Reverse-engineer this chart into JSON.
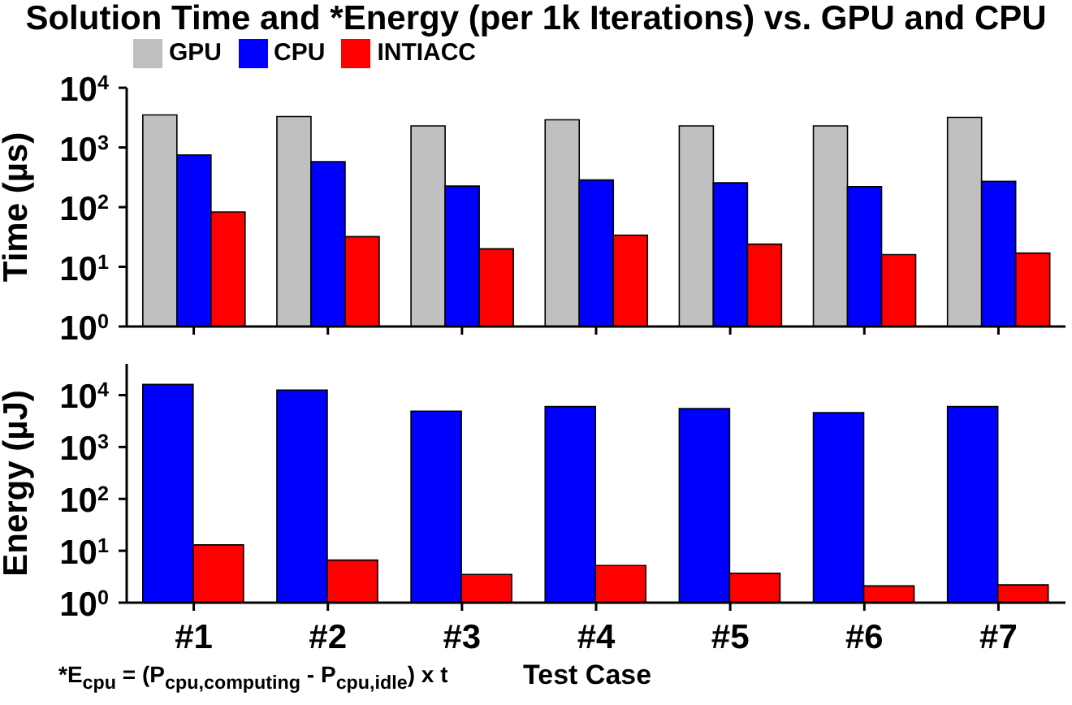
{
  "chart_data": [
    {
      "type": "bar",
      "title": "Solution Time and *Energy (per 1k Iterations) vs. GPU and CPU",
      "ylabel": "Time (µs)",
      "categories": [
        null,
        null,
        null,
        null,
        null,
        null,
        null
      ],
      "log": true,
      "ylim": [
        1,
        10000
      ],
      "yticks": [
        {
          "value": 1,
          "label": "10$^{0}$"
        },
        {
          "value": 10,
          "label": "10$^{1}$"
        },
        {
          "value": 100,
          "label": "10$^{2}$"
        },
        {
          "value": 1000,
          "label": "10$^{3}$"
        },
        {
          "value": 10000,
          "label": "10$^{4}$"
        }
      ],
      "tick_labels": "y",
      "legend": "top",
      "grid": false,
      "series": [
        {
          "name": "GPU",
          "color": "#c0c0c0",
          "values": [
            3500,
            3300,
            2300,
            2900,
            2300,
            2300,
            3200
          ]
        },
        {
          "name": "CPU",
          "color": "#0000ff",
          "values": [
            750,
            580,
            225,
            285,
            255,
            220,
            270
          ]
        },
        {
          "name": "INTIACC",
          "color": "#ff0000",
          "values": [
            83,
            32,
            20,
            34,
            24,
            16,
            17
          ]
        }
      ]
    },
    {
      "type": "bar",
      "ylabel": "Energy (µJ)",
      "xlabel": "Test Case",
      "categories": [
        "#1",
        "#2",
        "#3",
        "#4",
        "#5",
        "#6",
        "#7"
      ],
      "log": true,
      "ylim": [
        1,
        40000
      ],
      "yticks": [
        {
          "value": 1,
          "label": "10$^{0}$"
        },
        {
          "value": 10,
          "label": "10$^{1}$"
        },
        {
          "value": 100,
          "label": "10$^{2}$"
        },
        {
          "value": 1000,
          "label": "10$^{3}$"
        },
        {
          "value": 10000,
          "label": "10$^{4}$"
        }
      ],
      "grid": false,
      "annotations": [
        "*E$_{cpu}$ = (P$_{cpu,computing}$ - P$_{cpu,idle}$) x t"
      ],
      "series": [
        {
          "color": "#0000ff",
          "values": [
            16000,
            12500,
            4900,
            6000,
            5500,
            4600,
            6000
          ]
        },
        {
          "color": "#ff0000",
          "values": [
            13,
            6.6,
            3.5,
            5.2,
            3.7,
            2.1,
            2.2
          ]
        }
      ]
    }
  ]
}
